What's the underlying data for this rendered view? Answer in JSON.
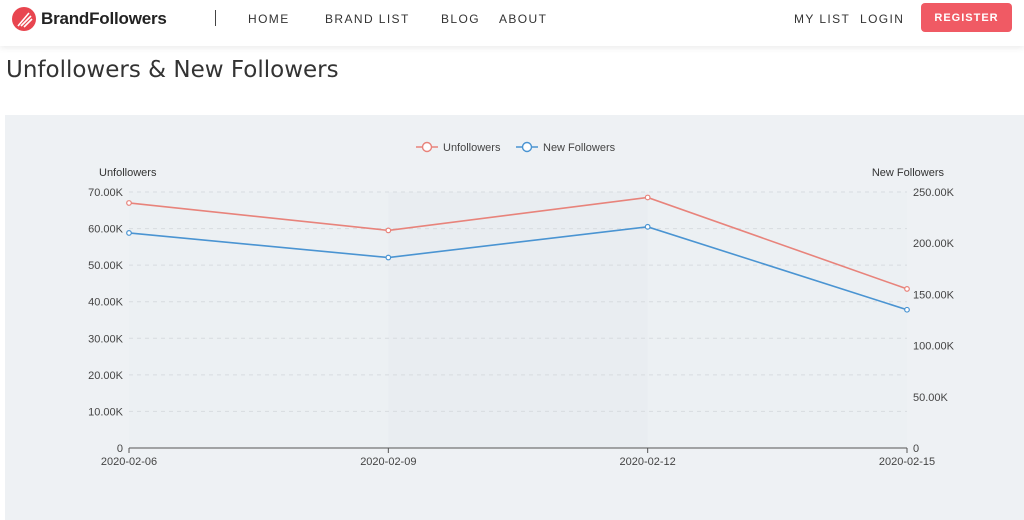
{
  "navbar": {
    "brand": "BrandFollowers",
    "links": [
      "HOME",
      "BRAND LIST",
      "BLOG",
      "ABOUT"
    ],
    "right_links": [
      "MY LIST",
      "LOGIN"
    ],
    "register_label": "REGISTER",
    "accent_color": "#f05a64"
  },
  "page": {
    "title": "Unfollowers & New Followers"
  },
  "chart_data": {
    "type": "line",
    "categories": [
      "2020-02-06",
      "2020-02-09",
      "2020-02-12",
      "2020-02-15"
    ],
    "series": [
      {
        "name": "Unfollowers",
        "axis": "left",
        "color": "#e8837b",
        "values": [
          67000,
          59500,
          68500,
          43500
        ]
      },
      {
        "name": "New Followers",
        "axis": "right",
        "color": "#4a94d2",
        "values": [
          210000,
          186000,
          216000,
          135000
        ]
      }
    ],
    "y_left": {
      "label": "Unfollowers",
      "range": [
        0,
        70000
      ],
      "ticks": [
        "0",
        "10.00K",
        "20.00K",
        "30.00K",
        "40.00K",
        "50.00K",
        "60.00K",
        "70.00K"
      ]
    },
    "y_right": {
      "label": "New Followers",
      "range": [
        0,
        250000
      ],
      "ticks": [
        "0",
        "50.00K",
        "100.00K",
        "150.00K",
        "200.00K",
        "250.00K"
      ]
    },
    "legend_position": "top-center",
    "grid": true
  }
}
